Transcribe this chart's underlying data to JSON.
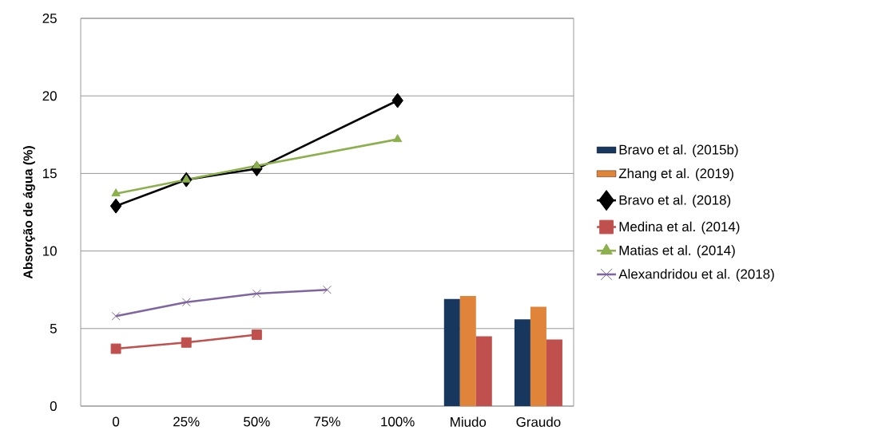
{
  "chart_data": {
    "type": "line",
    "ylabel": "Absorção de água (%)",
    "categories": [
      "0",
      "25%",
      "50%",
      "75%",
      "100%",
      "Miudo",
      "Graudo"
    ],
    "ylim": [
      0,
      25
    ],
    "yticks": [
      0,
      5,
      10,
      15,
      20,
      25
    ],
    "grid": "y",
    "legend": "right",
    "series": [
      {
        "name": "Bravo et al. (2015b)",
        "type": "bar",
        "color": "#17375e",
        "values": [
          null,
          null,
          null,
          null,
          null,
          6.9,
          5.6
        ]
      },
      {
        "name": "Zhang et al. (2019)",
        "type": "bar",
        "color": "#e0843a",
        "values": [
          null,
          null,
          null,
          null,
          null,
          7.1,
          6.4
        ]
      },
      {
        "type": "bar",
        "color": "#c0504d",
        "values": [
          null,
          null,
          null,
          null,
          null,
          4.5,
          4.3
        ]
      },
      {
        "name": "Bravo et al. (2018)",
        "color": "#000000",
        "marker": "diamond",
        "values": [
          12.9,
          14.6,
          15.3,
          null,
          19.7,
          null,
          null
        ]
      },
      {
        "name": "Medina et al. (2014)",
        "color": "#c0504d",
        "marker": "square",
        "values": [
          3.7,
          4.1,
          4.6,
          null,
          null,
          null,
          null
        ]
      },
      {
        "name": "Matias et al. (2014)",
        "color": "#8cb04c",
        "marker": "triangle",
        "values": [
          13.7,
          14.6,
          15.5,
          null,
          17.2,
          null,
          null
        ]
      },
      {
        "name": "Alexandridou et al. (2018)",
        "color": "#8064a2",
        "marker": "cross",
        "values": [
          5.8,
          6.7,
          7.25,
          7.5,
          null,
          null,
          null
        ]
      }
    ]
  }
}
